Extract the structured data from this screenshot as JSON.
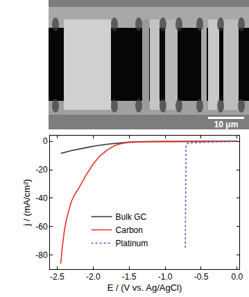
{
  "image": {
    "scale_bar": "10 μm"
  },
  "chart_data": {
    "type": "line",
    "x_label": "E / (V vs. Ag/AgCl)",
    "y_label": "j / (mA/cm²)",
    "xlim": [
      -2.6,
      0.03
    ],
    "ylim": [
      -90,
      4
    ],
    "xticks": [
      -2.5,
      {
        "value": -2,
        "label": "-2.0"
      },
      -1.5,
      {
        "value": -1,
        "label": "-1.0"
      },
      -0.5,
      {
        "value": 0,
        "label": "0.0"
      }
    ],
    "yticks": [
      -80,
      -60,
      -40,
      -20,
      0
    ],
    "grid": false,
    "legend": "lower left",
    "series": [
      {
        "name": "Bulk GC",
        "color": "#333333",
        "line_style": "solid",
        "x": [
          -2.45,
          -2.3,
          -2.1,
          -2.0,
          -1.8,
          -1.7,
          -1.5,
          -1.3,
          -1.0,
          -0.5,
          0.0
        ],
        "values": [
          -8.5,
          -6.5,
          -4.5,
          -3.5,
          -2.0,
          -1.5,
          -0.6,
          -0.2,
          -0.1,
          0,
          0
        ]
      },
      {
        "name": "Carbon",
        "color": "#e8302a",
        "line_style": "solid",
        "x": [
          -2.45,
          -2.43,
          -2.4,
          -2.37,
          -2.33,
          -2.3,
          -2.25,
          -2.2,
          -2.1,
          -2.0,
          -1.9,
          -1.8,
          -1.7,
          -1.6,
          -1.5,
          -1.3,
          -1.0,
          -0.5,
          0.0
        ],
        "values": [
          -86,
          -75,
          -63,
          -55,
          -47,
          -42,
          -37,
          -33,
          -24,
          -16,
          -10,
          -6,
          -3,
          -1.5,
          -0.7,
          -0.3,
          -0.1,
          0,
          0
        ]
      },
      {
        "name": "Platinum",
        "color": "#3a5fc8",
        "line_style": "dot",
        "x": [
          -0.72,
          -0.718,
          -0.715,
          -0.71,
          -0.68,
          -0.5,
          -0.2,
          0.0
        ],
        "values": [
          -75,
          -30,
          -8,
          -2.5,
          -1.2,
          -0.7,
          -0.3,
          0
        ]
      }
    ]
  }
}
